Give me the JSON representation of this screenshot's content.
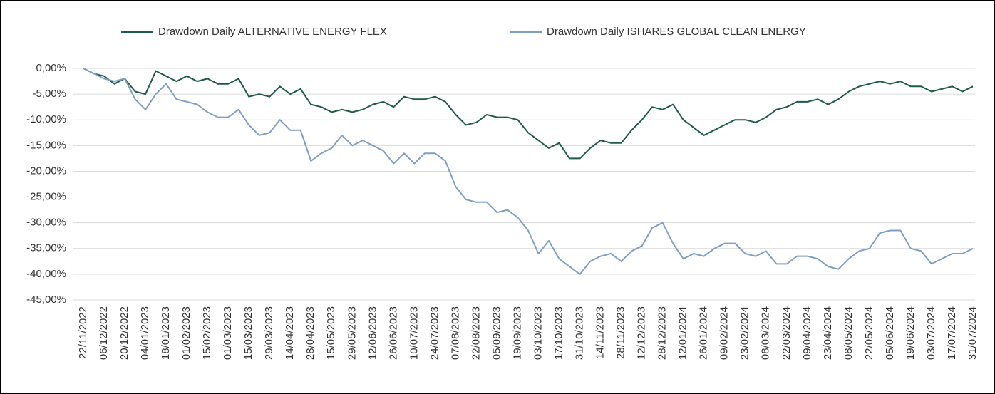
{
  "chart_data": {
    "type": "line",
    "categories": [
      "22/11/2022",
      null,
      "06/12/2022",
      null,
      "20/12/2022",
      null,
      "04/01/2023",
      null,
      "18/01/2023",
      null,
      "01/02/2023",
      null,
      "15/02/2023",
      null,
      "01/03/2023",
      null,
      "15/03/2023",
      null,
      "29/03/2023",
      null,
      "14/04/2023",
      null,
      "28/04/2023",
      null,
      "15/05/2023",
      null,
      "29/05/2023",
      null,
      "12/06/2023",
      null,
      "26/06/2023",
      null,
      "10/07/2023",
      null,
      "24/07/2023",
      null,
      "07/08/2023",
      null,
      "22/08/2023",
      null,
      "05/09/2023",
      null,
      "19/09/2023",
      null,
      "03/10/2023",
      null,
      "17/10/2023",
      null,
      "31/10/2023",
      null,
      "14/11/2023",
      null,
      "28/11/2023",
      null,
      "12/12/2023",
      null,
      "28/12/2023",
      null,
      "12/01/2024",
      null,
      "26/01/2024",
      null,
      "09/02/2024",
      null,
      "23/02/2024",
      null,
      "08/03/2024",
      null,
      "22/03/2024",
      null,
      "09/04/2024",
      null,
      "23/04/2024",
      null,
      "08/05/2024",
      null,
      "22/05/2024",
      null,
      "05/06/2024",
      null,
      "19/06/2024",
      null,
      "03/07/2024",
      null,
      "17/07/2024",
      null,
      "31/07/2024"
    ],
    "series": [
      {
        "name": "Drawdown Daily ALTERNATIVE ENERGY FLEX",
        "color": "#1e5a4a",
        "values": [
          0,
          -1,
          -1.5,
          -3,
          -2,
          -4.5,
          -5,
          -0.5,
          -1.5,
          -2.5,
          -1.5,
          -2.5,
          -2,
          -3,
          -3,
          -2,
          -5.5,
          -5,
          -5.5,
          -3.5,
          -5,
          -4,
          -7,
          -7.5,
          -8.5,
          -8,
          -8.5,
          -8,
          -7,
          -6.5,
          -7.5,
          -5.5,
          -6,
          -6,
          -5.5,
          -6.5,
          -9,
          -11,
          -10.5,
          -9,
          -9.5,
          -9.5,
          -10,
          -12.5,
          -14,
          -15.5,
          -14.5,
          -17.5,
          -17.5,
          -15.5,
          -14,
          -14.5,
          -14.5,
          -12,
          -10,
          -7.5,
          -8,
          -7,
          -10,
          -11.5,
          -13,
          -12,
          -11,
          -10,
          -10,
          -10.5,
          -9.5,
          -8,
          -7.5,
          -6.5,
          -6.5,
          -6,
          -7,
          -6,
          -4.5,
          -3.5,
          -3,
          -2.5,
          -3,
          -2.5,
          -3.5,
          -3.5,
          -4.5,
          -4,
          -3.5,
          -4.5,
          -3.5
        ]
      },
      {
        "name": "Drawdown Daily ISHARES GLOBAL CLEAN ENERGY",
        "color": "#7f9fc0",
        "values": [
          0,
          -1,
          -2,
          -2.5,
          -2,
          -6,
          -8,
          -5,
          -3,
          -6,
          -6.5,
          -7,
          -8.5,
          -9.5,
          -9.5,
          -8,
          -11,
          -13,
          -12.5,
          -10,
          -12,
          -12,
          -18,
          -16.5,
          -15.5,
          -13,
          -15,
          -14,
          -15,
          -16,
          -18.5,
          -16.5,
          -18.5,
          -16.5,
          -16.5,
          -18,
          -23,
          -25.5,
          -26,
          -26,
          -28,
          -27.5,
          -29,
          -31.5,
          -36,
          -33.5,
          -37,
          -38.5,
          -40,
          -37.5,
          -36.5,
          -36,
          -37.5,
          -35.5,
          -34.5,
          -31,
          -30,
          -34,
          -37,
          -36,
          -36.5,
          -35,
          -34,
          -34,
          -36,
          -36.5,
          -35.5,
          -38,
          -38,
          -36.5,
          -36.5,
          -37,
          -38.5,
          -39,
          -37,
          -35.5,
          -35,
          -32,
          -31.5,
          -31.5,
          -35,
          -35.5,
          -38,
          -37,
          -36,
          -36,
          -35
        ]
      }
    ],
    "ylim": [
      -45,
      0
    ],
    "yticks": [
      {
        "value": 0,
        "label": "0,00%"
      },
      {
        "value": -5,
        "label": "-5,00%"
      },
      {
        "value": -10,
        "label": "-10,00%"
      },
      {
        "value": -15,
        "label": "-15,00%"
      },
      {
        "value": -20,
        "label": "-20,00%"
      },
      {
        "value": -25,
        "label": "-25,00%"
      },
      {
        "value": -30,
        "label": "-30,00%"
      },
      {
        "value": -35,
        "label": "-35,00%"
      },
      {
        "value": -40,
        "label": "-40,00%"
      },
      {
        "value": -45,
        "label": "-45,00%"
      }
    ],
    "grid": true,
    "legend": "top"
  }
}
